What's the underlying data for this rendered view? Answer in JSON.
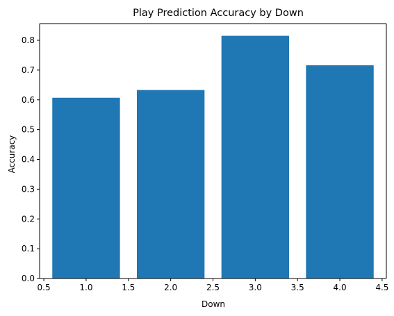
{
  "chart_data": {
    "type": "bar",
    "title": "Play Prediction Accuracy by Down",
    "xlabel": "Down",
    "ylabel": "Accuracy",
    "x": [
      1,
      2,
      3,
      4
    ],
    "values": [
      0.607,
      0.633,
      0.815,
      0.716
    ],
    "bar_width": 0.8,
    "xlim": [
      0.45,
      4.55
    ],
    "ylim": [
      0,
      0.856
    ],
    "xticks": [
      {
        "value": 0.5,
        "label": "0.5"
      },
      {
        "value": 1.0,
        "label": "1.0"
      },
      {
        "value": 1.5,
        "label": "1.5"
      },
      {
        "value": 2.0,
        "label": "2.0"
      },
      {
        "value": 2.5,
        "label": "2.5"
      },
      {
        "value": 3.0,
        "label": "3.0"
      },
      {
        "value": 3.5,
        "label": "3.5"
      },
      {
        "value": 4.0,
        "label": "4.0"
      },
      {
        "value": 4.5,
        "label": "4.5"
      }
    ],
    "yticks": [
      {
        "value": 0.0,
        "label": "0.0"
      },
      {
        "value": 0.1,
        "label": "0.1"
      },
      {
        "value": 0.2,
        "label": "0.2"
      },
      {
        "value": 0.3,
        "label": "0.3"
      },
      {
        "value": 0.4,
        "label": "0.4"
      },
      {
        "value": 0.5,
        "label": "0.5"
      },
      {
        "value": 0.6,
        "label": "0.6"
      },
      {
        "value": 0.7,
        "label": "0.7"
      },
      {
        "value": 0.8,
        "label": "0.8"
      }
    ],
    "grid": false,
    "legend": "none",
    "bar_color": "#1f77b4"
  }
}
